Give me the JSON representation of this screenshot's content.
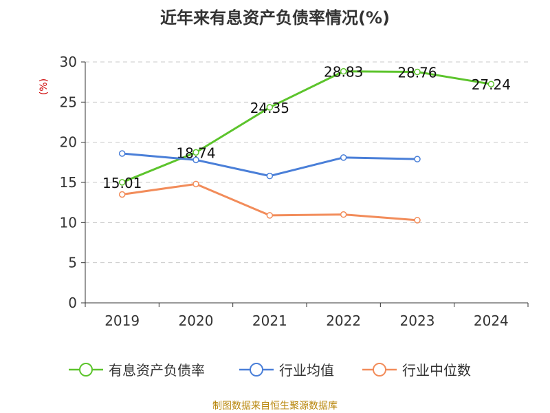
{
  "chart_data": {
    "type": "line",
    "title": "近年来有息资产负债率情况(%)",
    "ylabel": "(%)",
    "xlabel": "",
    "ylim": [
      0,
      30
    ],
    "y_ticks": [
      "0",
      "5",
      "10",
      "15",
      "20",
      "25",
      "30"
    ],
    "categories": [
      "2019",
      "2020",
      "2021",
      "2022",
      "2023",
      "2024"
    ],
    "grid": true,
    "legend_position": "bottom",
    "series": [
      {
        "name": "有息资产负债率",
        "color": "#5cc42c",
        "values": [
          15.01,
          18.74,
          24.35,
          28.83,
          28.76,
          27.24
        ],
        "labels": [
          "15.01",
          "18.74",
          "24.35",
          "28.83",
          "28.76",
          "27.24"
        ],
        "show_labels": true
      },
      {
        "name": "行业均值",
        "color": "#4a7fd8",
        "values": [
          18.6,
          17.8,
          15.8,
          18.1,
          17.9,
          null
        ],
        "show_labels": false
      },
      {
        "name": "行业中位数",
        "color": "#f28c5a",
        "values": [
          13.5,
          14.8,
          10.9,
          11.0,
          10.3,
          null
        ],
        "show_labels": false
      }
    ]
  },
  "source": "制图数据来自恒生聚源数据库"
}
